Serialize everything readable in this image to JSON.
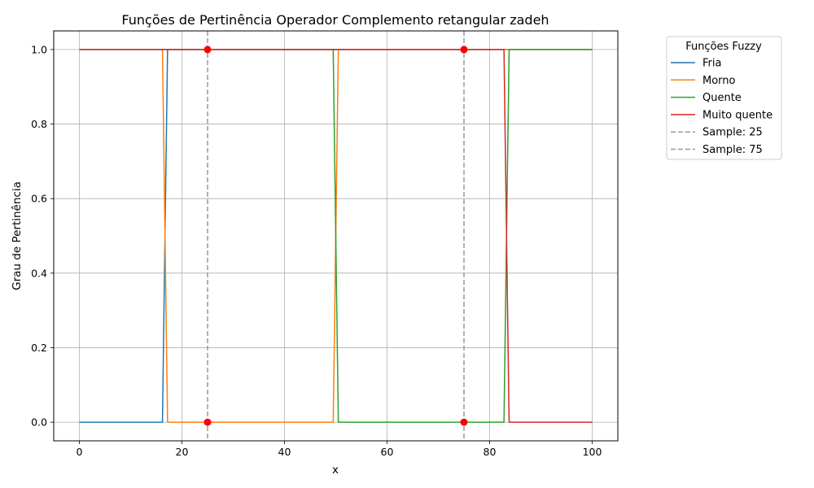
{
  "chart_data": {
    "type": "line",
    "title": "Funções de Pertinência Operador Complemento retangular zadeh",
    "xlabel": "x",
    "ylabel": "Grau de Pertinência",
    "xlim": [
      -5,
      105
    ],
    "ylim": [
      -0.05,
      1.05
    ],
    "xticks": [
      0,
      20,
      40,
      60,
      80,
      100
    ],
    "yticks": [
      0.0,
      0.2,
      0.4,
      0.6,
      0.8,
      1.0
    ],
    "xtick_labels": [
      "0",
      "20",
      "40",
      "60",
      "80",
      "100"
    ],
    "ytick_labels": [
      "0.0",
      "0.2",
      "0.4",
      "0.6",
      "0.8",
      "1.0"
    ],
    "grid": true,
    "legend": {
      "title": "Funções Fuzzy",
      "placement": "outside-top-right"
    },
    "series": [
      {
        "name": "Fria",
        "color": "#1f77b4",
        "x": [
          0,
          16.2,
          17.2,
          100
        ],
        "y": [
          0,
          0,
          1,
          1
        ]
      },
      {
        "name": "Morno",
        "color": "#ff7f0e",
        "x": [
          0,
          16.2,
          17.2,
          49.5,
          50.5,
          100
        ],
        "y": [
          1,
          1,
          0,
          0,
          1,
          1
        ]
      },
      {
        "name": "Quente",
        "color": "#2ca02c",
        "x": [
          0,
          49.5,
          50.5,
          82.8,
          83.8,
          100
        ],
        "y": [
          1,
          1,
          0,
          0,
          1,
          1
        ]
      },
      {
        "name": "Muito quente",
        "color": "#d62728",
        "x": [
          0,
          82.8,
          83.8,
          100
        ],
        "y": [
          1,
          1,
          0,
          0
        ]
      }
    ],
    "reference_lines": [
      {
        "name": "Sample: 25",
        "x": 25,
        "color": "#999999",
        "style": "dashed"
      },
      {
        "name": "Sample: 75",
        "x": 75,
        "color": "#999999",
        "style": "dashed"
      }
    ],
    "markers": {
      "color": "#ff0000",
      "points": [
        {
          "x": 25,
          "y": 1
        },
        {
          "x": 25,
          "y": 0
        },
        {
          "x": 75,
          "y": 1
        },
        {
          "x": 75,
          "y": 0
        }
      ]
    }
  }
}
